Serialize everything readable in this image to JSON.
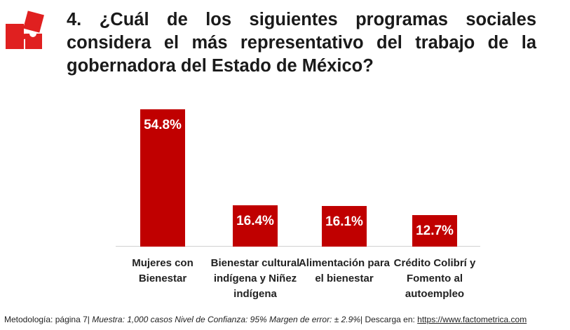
{
  "chart_data": {
    "type": "bar",
    "title": "4. ¿Cuál de los siguientes programas sociales considera el más representativo del trabajo de la gobernadora del Estado de México?",
    "categories": [
      "Mujeres con Bienestar",
      "Bienestar cultural indígena y Niñez indígena",
      "Alimentación para el bienestar",
      "Crédito Colibrí y Fomento al autoempleo"
    ],
    "values": [
      54.8,
      16.4,
      16.1,
      12.7
    ],
    "value_labels": [
      "54.8%",
      "16.4%",
      "16.1%",
      "12.7%"
    ],
    "color": "#c00000"
  },
  "footer": {
    "parts": [
      {
        "text": "Metodología: página 7| ",
        "italic": false
      },
      {
        "text": "Muestra:  1,000 casos Nivel de Confianza: 95%  Margen de error: ± 2.9%",
        "italic": true
      },
      {
        "text": "| Descarga en: ",
        "italic": false
      },
      {
        "text": "https://www.factometrica.com",
        "italic": false,
        "underline": true
      }
    ]
  }
}
